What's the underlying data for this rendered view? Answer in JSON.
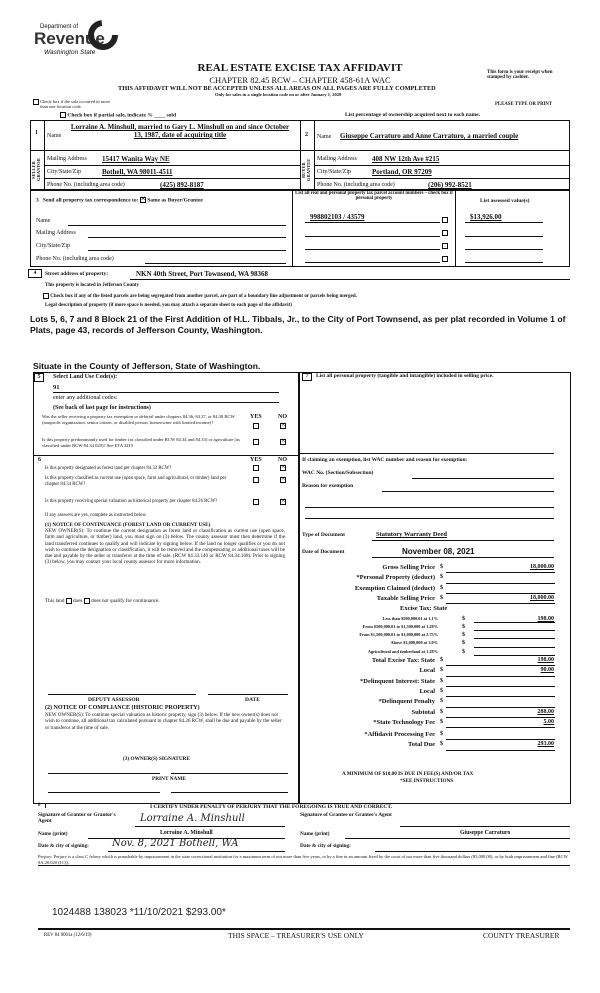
{
  "logo": {
    "line1": "Department of",
    "line2": "Revenue",
    "line3": "Washington State"
  },
  "header": {
    "title": "REAL ESTATE EXCISE TAX AFFIDAVIT",
    "chapter": "CHAPTER 82.45 RCW – CHAPTER 458-61A WAC",
    "warning": "THIS AFFIDAVIT WILL NOT BE ACCEPTED UNLESS ALL AREAS ON ALL PAGES ARE FULLY COMPLETED",
    "only_for": "Only for sales in a single location code on or after January 1, 2020",
    "receipt_note": "This form is your receipt when stamped by cashier.",
    "type_or_print": "PLEASE TYPE OR PRINT",
    "multi_location": "Check box if the sale occurred in more than one location code.",
    "partial_sale": "Check box if partial sale, indicate % ____ sold",
    "ownership_note": "List percentage of ownership acquired next to each name."
  },
  "seller": {
    "num": "1",
    "side_label": "SELLER GRANTOR",
    "name_label": "Name",
    "name": "Lorraine A. Minshull, married to Gary L. Minshull on and since October 13, 1987, date of acquiring title",
    "address_label": "Mailing Address",
    "address": "15417 Wanita Way NE",
    "city_label": "City/State/Zip",
    "city": "Bothell, WA 98011-4511",
    "phone_label": "Phone No. (including area code)",
    "phone": "(425) 892-8187"
  },
  "buyer": {
    "num": "2",
    "side_label": "BUYER GRANTEE",
    "name_label": "Name",
    "name": "Giuseppe Carraturo and Anne Carraturo, a married couple",
    "address_label": "Mailing Address",
    "address": "408 NW 12th Ave #215",
    "city_label": "City/State/Zip",
    "city": "Portland, OR 97209",
    "phone_label": "Phone No. (including area code)",
    "phone": "(206) 992-8521"
  },
  "section3": {
    "num": "3",
    "label": "Send all property tax correspondence to:",
    "same_as": "Same as Buyer/Grantee",
    "same_checked": true,
    "name_label": "Name",
    "address_label": "Mailing Address",
    "city_label": "City/State/Zip",
    "phone_label": "Phone No. (including area code)",
    "parcel_header": "List all real and personal property tax parcel account numbers – check box if personal property",
    "assessed_header": "List assessed value(s)",
    "parcels": [
      {
        "number": "998802103 / 43579",
        "value": "$13,926.00"
      }
    ]
  },
  "section4": {
    "num": "4",
    "label": "Street address of property:",
    "address": "NKN 40th Street, Port Townsend, WA 98368",
    "county": "This property is located in Jefferson County",
    "segregated": "Check box if any of the listed parcels are being segregated from another parcel, are part of a boundary line adjustment or parcels being merged.",
    "legal_label": "Legal description of property (if more space is needed, you may attach a separate sheet to each page of the affidavit)",
    "legal": "Lots 5, 6, 7 and 8 Block 21 of the First Addition of H.L. Tibbals, Jr., to the City of Port Townsend, as per plat recorded in Volume 1 of Plats, page 43, records of Jefferson County, Washington.",
    "situate": "Situate in the County of Jefferson, State of Washington."
  },
  "section5": {
    "num": "5",
    "label": "Select Land Use Code(s):",
    "code": "91",
    "additional": "enter any additional codes:",
    "see_back": "(See back of last page for instructions)",
    "yes": "YES",
    "no": "NO",
    "q1": "Was the seller receiving a property tax exemption or deferral under chapters 84.36, 84.37, or 84.38 RCW (nonprofit organization, senior citizen, or disabled person, homeowner with limited income)?",
    "q2": "Is this property predominantly used for timber (as classified under RCW 84.34 and 84.33) or agriculture (as classified under RCW 84.34.020)? See ETA 3215"
  },
  "section6": {
    "num": "6",
    "yes": "YES",
    "no": "NO",
    "q1": "Is this property designated as forest land per chapter 84.33 RCW?",
    "q2": "Is this property classified as current use (open space, farm and agricultural, or timber) land per chapter 84.34 RCW?",
    "q3": "Is this property receiving special valuation as historical property per chapter 84.26 RCW?",
    "if_yes": "If any answers are yes, complete as instructed below.",
    "notice1_title": "(1) NOTICE OF CONTINUANCE (FOREST LAND OR CURRENT USE)",
    "notice1": "NEW OWNER(S): To continue the current designation as forest land or classification as current use (open space, farm and agriculture, or timber) land, you must sign on (3) below. The county assessor must then determine if the land transferred continues to qualify and will indicate by signing below. If the land no longer qualifies or you do not wish to continue the designation or classification, it will be removed and the compensating or additional taxes will be due and payable by the seller or transferor at the time of sale. (RCW 84.33.140 or RCW 84.34.108). Prior to signing (3) below, you may contact your local county assessor for more information.",
    "this_land": "This land",
    "does": "does",
    "does_not": "does not qualify for continuance.",
    "deputy": "DEPUTY ASSESSOR",
    "date": "DATE",
    "notice2_title": "(2) NOTICE OF COMPLIANCE (HISTORIC PROPERTY)",
    "notice2": "NEW OWNER(S): To continue special valuation as historic property, sign (3) below. If the new owner(s) does not wish to continue, all additional tax calculated pursuant to chapter 84.26 RCW, shall be due and payable by the seller or transferor at the time of sale.",
    "owner_sig": "(3) OWNER(S) SIGNATURE",
    "print_name": "PRINT NAME"
  },
  "section7": {
    "num": "7",
    "label": "List all personal property (tangible and intangible) included in selling price.",
    "exemption": "If claiming an exemption, list WAC number and reason for exemption:",
    "wac": "WAC No. (Section/Subsection)",
    "reason": "Reason for exemption",
    "doc_type_label": "Type of Document",
    "doc_type": "Statutory Warranty Deed",
    "doc_date_label": "Date of Document",
    "doc_date": "November 08, 2021"
  },
  "calc": {
    "currency": "$",
    "rows": [
      {
        "label": "Gross Selling Price",
        "value": "18,000.00"
      },
      {
        "label": "*Personal Property (deduct)",
        "value": ""
      },
      {
        "label": "Exemption Claimed (deduct)",
        "value": ""
      },
      {
        "label": "Taxable Selling Price",
        "value": "18,000.00"
      },
      {
        "label": "Excise Tax: State",
        "value": null
      },
      {
        "label": "Less than $500,000.01 at 1.1%",
        "value": "198.00",
        "small": true
      },
      {
        "label": "From $500,000.01 to $1,500,000 at 1.28%",
        "value": "",
        "small": true
      },
      {
        "label": "From $1,500,000.01 to $3,000,000 at 2.75%",
        "value": "",
        "small": true
      },
      {
        "label": "Above $3,000,000 at 3.0%",
        "value": "",
        "small": true
      },
      {
        "label": "Agricultural and timberland at 1.28%",
        "value": "",
        "small": true
      },
      {
        "label": "Total Excise Tax: State",
        "value": "198.00"
      },
      {
        "label": "Local",
        "value": "90.00"
      },
      {
        "label": "*Delinquent Interest: State",
        "value": ""
      },
      {
        "label": "Local",
        "value": ""
      },
      {
        "label": "*Delinquent Penalty",
        "value": ""
      },
      {
        "label": "Subtotal",
        "value": "288.00"
      },
      {
        "label": "*State Technology Fee",
        "value": "5.00"
      },
      {
        "label": "*Affidavit Processing Fee",
        "value": ""
      },
      {
        "label": "Total Due",
        "value": "293.00"
      }
    ],
    "minimum": "A MINIMUM OF $10.00 IS DUE IN FEE(S) AND/OR TAX",
    "see": "*SEE INSTRUCTIONS"
  },
  "section8": {
    "num": "8",
    "certify": "I CERTIFY UNDER PENALTY OF PERJURY THAT THE FOREGOING IS TRUE AND CORRECT.",
    "grantor_sig_label": "Signature of Grantor or Grantor's Agent",
    "grantor_sig": "Lorraine A. Minshull",
    "grantee_sig_label": "Signature of Grantee or Grantee's Agent",
    "name_label": "Name (print)",
    "grantor_name": "Lorraine A. Minshull",
    "grantee_name": "Giuseppe Carraturo",
    "date_label": "Date & city of signing:",
    "grantor_date": "Nov. 8, 2021  Bothell, WA",
    "perjury": "Perjury: Perjury is a class C felony which is punishable by imprisonment in the state correctional institution for a maximum term of not more than five years, or by a fine in an amount fixed by the court of not more than five thousand dollars ($5,000.00), or by both imprisonment and fine (RCW 9A.20.020 (1C))."
  },
  "stamp": "1024488 138023 *11/10/2021 $293.00*",
  "footer": {
    "form": "REV 84 0001a (12/6/19)",
    "treasurer_use": "THIS SPACE – TREASURER'S USE ONLY",
    "county": "COUNTY TREASURER"
  }
}
